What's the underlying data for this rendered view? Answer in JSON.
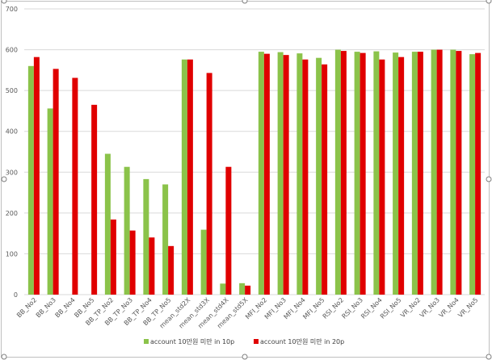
{
  "colors": {
    "series_1": "#8BC34A",
    "series_2": "#E00000",
    "grid": "#d9d9d9",
    "frame": "#bfbfbf"
  },
  "chart_data": {
    "type": "bar",
    "title": "",
    "xlabel": "",
    "ylabel": "",
    "ylim": [
      0,
      700
    ],
    "yticks": [
      0,
      100,
      200,
      300,
      400,
      500,
      600,
      700
    ],
    "grid": true,
    "legend_position": "bottom",
    "categories": [
      "BB_No2",
      "BB_No3",
      "BB_No4",
      "BB_No5",
      "BB_TP_No2",
      "BB_TP_No3",
      "BB_TP_No4",
      "BB_TP_No5",
      "mean_std2X",
      "mean_std3X",
      "mean_std4X",
      "mean_std5X",
      "MFI_No2",
      "MFI_No3",
      "MFI_No4",
      "MFI_No5",
      "RSI_No2",
      "RSI_No3",
      "RSI_No4",
      "RSI_No5",
      "VR_No2",
      "VR_No3",
      "VR_No4",
      "VR_No5"
    ],
    "series": [
      {
        "name": "account 10만원 미만 in 10p",
        "values": [
          560,
          456,
          0,
          0,
          345,
          313,
          283,
          270,
          576,
          159,
          27,
          28,
          595,
          594,
          591,
          580,
          600,
          595,
          596,
          593,
          595,
          600,
          600,
          589
        ]
      },
      {
        "name": "account 10만원 미만 in 20p",
        "values": [
          582,
          553,
          531,
          465,
          184,
          157,
          140,
          119,
          576,
          543,
          313,
          22,
          590,
          587,
          576,
          564,
          597,
          592,
          576,
          582,
          595,
          600,
          597,
          592
        ]
      }
    ]
  }
}
